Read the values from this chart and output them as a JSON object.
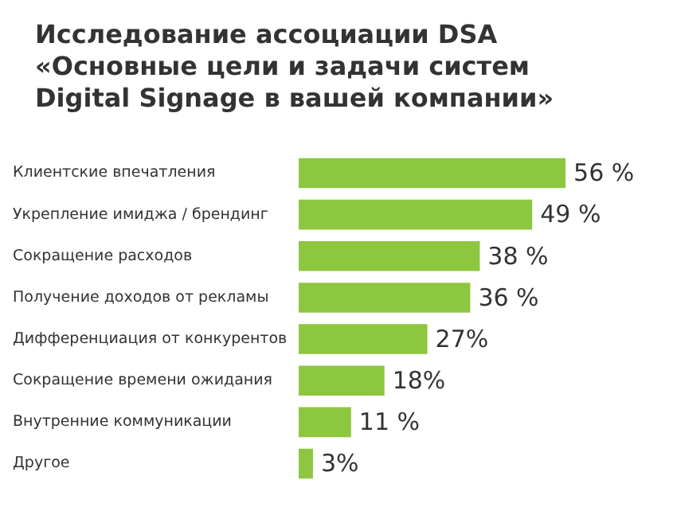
{
  "chart_data": {
    "type": "bar",
    "orientation": "horizontal",
    "title": "Исследование ассоциации DSA «Основные цели и задачи систем Digital Signage в вашей компании»",
    "categories": [
      "Клиентские впечатления",
      "Укрепление имиджа / брендинг",
      "Сокращение расходов",
      "Получение доходов от рекламы",
      "Дифференциация от конкурентов",
      "Сокращение времени ожидания",
      "Внутренние коммуникации",
      "Другое"
    ],
    "values": [
      56,
      49,
      38,
      36,
      27,
      18,
      11,
      3
    ],
    "value_labels": [
      "56 %",
      "49 %",
      "38 %",
      "36 %",
      "27%",
      "18%",
      "11 %",
      "3%"
    ],
    "color": "#8dc63f",
    "legend": false
  }
}
